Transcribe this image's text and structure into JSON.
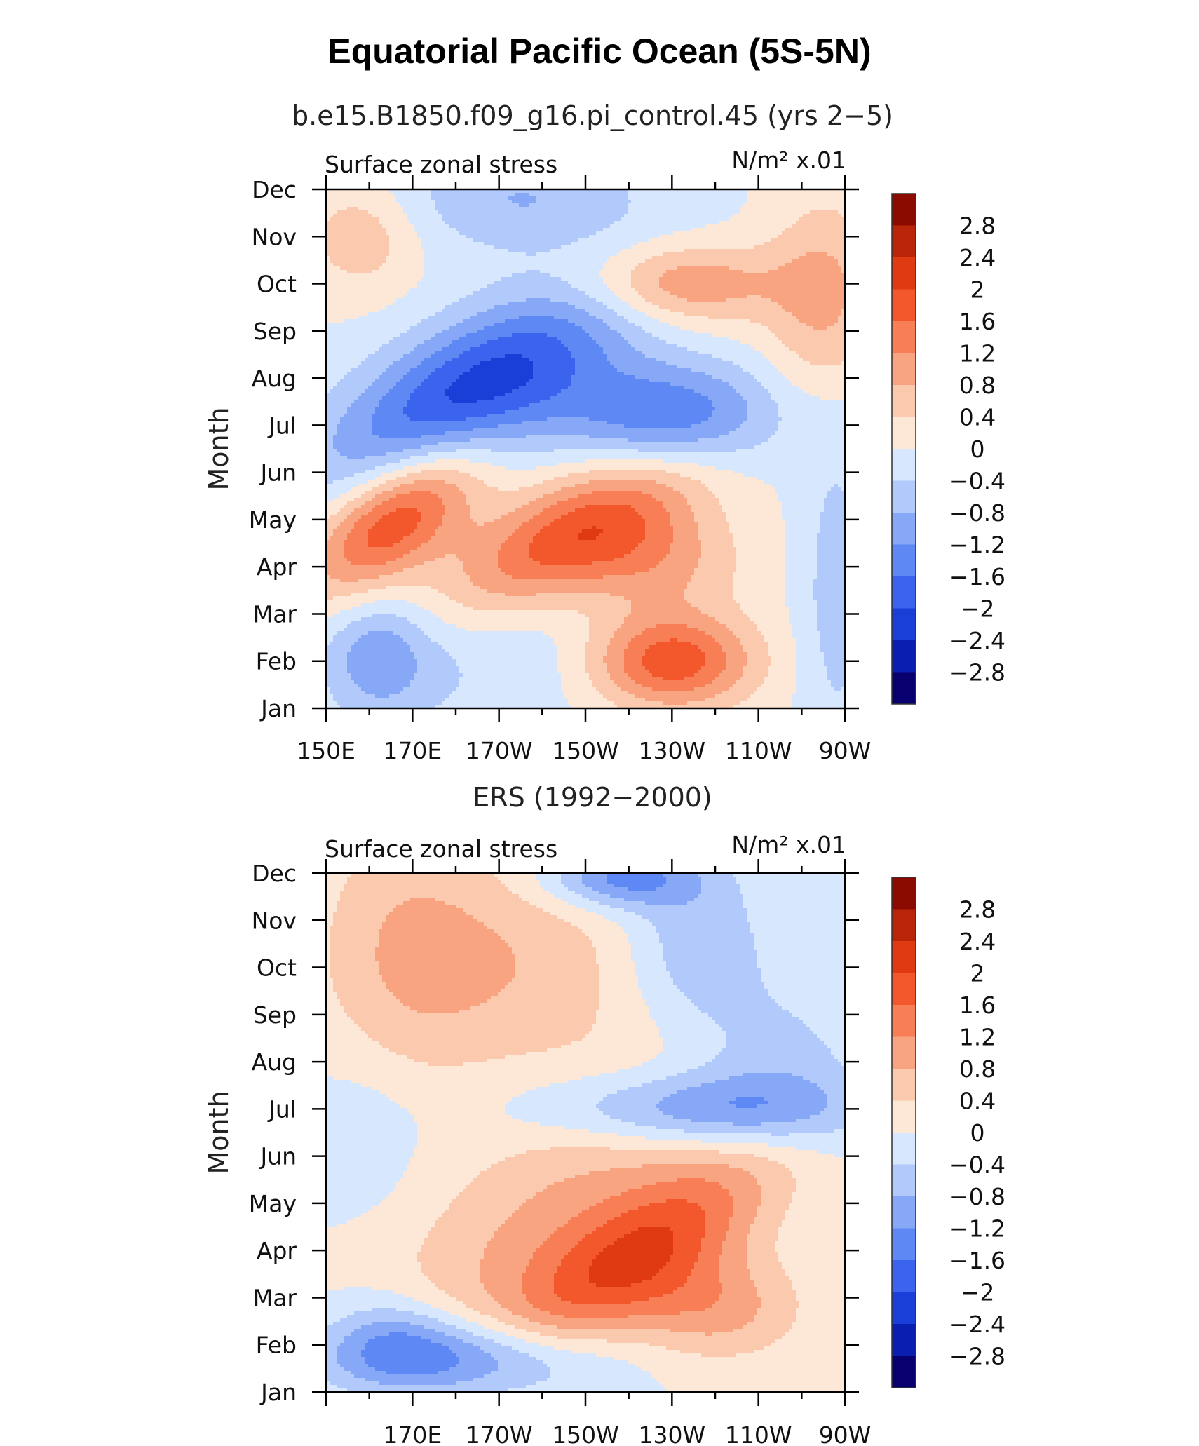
{
  "title": "Equatorial Pacific Ocean (5S-5N)",
  "colors": {
    "axis": "#000000",
    "levels": [
      "#08006e",
      "#0a1fb0",
      "#1a3ed8",
      "#3a63ee",
      "#5e89f4",
      "#86a8f7",
      "#b1c9fb",
      "#d7e7fd",
      "#fde7d7",
      "#fbc9ae",
      "#f9a481",
      "#f77e55",
      "#f2582c",
      "#e03a12",
      "#b82508",
      "#8c0b00"
    ]
  },
  "chart_data": [
    {
      "type": "heatmap",
      "subtitle": "b.e15.B1850.f09_g16.pi_control.45 (yrs 2−5)",
      "left_label": "Surface zonal stress",
      "units_label": "N/m² x.01",
      "ylabel": "Month",
      "xlabel": "",
      "x_tick_labels": [
        "150E",
        "170E",
        "170W",
        "150W",
        "130W",
        "110W",
        "90W"
      ],
      "x_tick_lon": [
        150,
        170,
        190,
        210,
        230,
        250,
        270
      ],
      "xlim": [
        150,
        270
      ],
      "y_tick_labels": [
        "Jan",
        "Feb",
        "Mar",
        "Apr",
        "May",
        "Jun",
        "Jul",
        "Aug",
        "Sep",
        "Oct",
        "Nov",
        "Dec"
      ],
      "ylim": [
        1,
        12
      ],
      "colorbar_labels": [
        "2.8",
        "2.4",
        "2",
        "1.6",
        "1.2",
        "0.8",
        "0.4",
        "0",
        "−0.4",
        "−0.8",
        "−1.2",
        "−1.6",
        "−2",
        "−2.4",
        "−2.8"
      ],
      "levels": [
        -2.8,
        -2.4,
        -2,
        -1.6,
        -1.2,
        -0.8,
        -0.4,
        0,
        0.4,
        0.8,
        1.2,
        1.6,
        2,
        2.4,
        2.8
      ],
      "features": [
        {
          "lon": 166,
          "month": 5.0,
          "amp": 2.1,
          "sx": 14,
          "sy": 0.9,
          "tilt": -0.05
        },
        {
          "lon": 205,
          "month": 4.6,
          "amp": 1.8,
          "sx": 22,
          "sy": 0.9,
          "tilt": -0.04
        },
        {
          "lon": 226,
          "month": 4.1,
          "amp": 0.9,
          "sx": 14,
          "sy": 0.8,
          "tilt": 0
        },
        {
          "lon": 230,
          "month": 2.0,
          "amp": 1.9,
          "sx": 13,
          "sy": 0.7,
          "tilt": 0
        },
        {
          "lon": 185,
          "month": 7.8,
          "amp": -2.2,
          "sx": 24,
          "sy": 1.1,
          "tilt": -0.04
        },
        {
          "lon": 230,
          "month": 7.2,
          "amp": -1.6,
          "sx": 18,
          "sy": 0.8,
          "tilt": 0
        },
        {
          "lon": 162,
          "month": 2.1,
          "amp": -1.0,
          "sx": 9,
          "sy": 0.9,
          "tilt": 0
        },
        {
          "lon": 182,
          "month": 2.6,
          "amp": -0.5,
          "sx": 22,
          "sy": 1.4,
          "tilt": 0
        },
        {
          "lon": 232,
          "month": 10.0,
          "amp": 1.3,
          "sx": 16,
          "sy": 0.6,
          "tilt": 0
        },
        {
          "lon": 265,
          "month": 9.7,
          "amp": 0.9,
          "sx": 9,
          "sy": 1.5,
          "tilt": 0
        },
        {
          "lon": 158,
          "month": 11.0,
          "amp": 0.7,
          "sx": 9,
          "sy": 0.8,
          "tilt": 0
        },
        {
          "lon": 195,
          "month": 11.8,
          "amp": -0.8,
          "sx": 20,
          "sy": 0.8,
          "tilt": 0
        },
        {
          "lon": 268,
          "month": 3.5,
          "amp": -0.6,
          "sx": 6,
          "sy": 2.5,
          "tilt": 0
        }
      ]
    },
    {
      "type": "heatmap",
      "subtitle": "ERS (1992−2000)",
      "left_label": "Surface zonal stress",
      "units_label": "N/m² x.01",
      "ylabel": "Month",
      "xlabel": "",
      "x_tick_labels": [
        "170E",
        "170W",
        "150W",
        "130W",
        "110W",
        "90W"
      ],
      "x_tick_lon": [
        170,
        190,
        210,
        230,
        250,
        270
      ],
      "xlim": [
        150,
        270
      ],
      "y_tick_labels": [
        "Jan",
        "Feb",
        "Mar",
        "Apr",
        "May",
        "Jun",
        "Jul",
        "Aug",
        "Sep",
        "Oct",
        "Nov",
        "Dec"
      ],
      "ylim": [
        1,
        12
      ],
      "colorbar_labels": [
        "2.8",
        "2.4",
        "2",
        "1.6",
        "1.2",
        "0.8",
        "0.4",
        "0",
        "−0.4",
        "−0.8",
        "−1.2",
        "−1.6",
        "−2",
        "−2.4",
        "−2.8"
      ],
      "levels": [
        -2.8,
        -2.4,
        -2,
        -1.6,
        -1.2,
        -0.8,
        -0.4,
        0,
        0.4,
        0.8,
        1.2,
        1.6,
        2,
        2.4,
        2.8
      ],
      "features": [
        {
          "lon": 222,
          "month": 3.9,
          "amp": 1.8,
          "sx": 22,
          "sy": 1.0,
          "tilt": -0.05
        },
        {
          "lon": 200,
          "month": 4.7,
          "amp": 0.8,
          "sx": 28,
          "sy": 1.5,
          "tilt": -0.05
        },
        {
          "lon": 240,
          "month": 2.8,
          "amp": 1.0,
          "sx": 14,
          "sy": 0.8,
          "tilt": 0
        },
        {
          "lon": 180,
          "month": 1.7,
          "amp": -1.6,
          "sx": 22,
          "sy": 0.6,
          "tilt": 0
        },
        {
          "lon": 165,
          "month": 2.2,
          "amp": -0.7,
          "sx": 10,
          "sy": 0.7,
          "tilt": 0
        },
        {
          "lon": 236,
          "month": 7.0,
          "amp": -1.3,
          "sx": 26,
          "sy": 0.55,
          "tilt": 0
        },
        {
          "lon": 255,
          "month": 8.0,
          "amp": -0.6,
          "sx": 14,
          "sy": 1.2,
          "tilt": 0
        },
        {
          "lon": 218,
          "month": 11.9,
          "amp": -1.4,
          "sx": 12,
          "sy": 0.45,
          "tilt": 0
        },
        {
          "lon": 235,
          "month": 10.5,
          "amp": -0.8,
          "sx": 12,
          "sy": 1.3,
          "tilt": 0
        },
        {
          "lon": 195,
          "month": 10.0,
          "amp": 0.7,
          "sx": 24,
          "sy": 1.6,
          "tilt": 0
        },
        {
          "lon": 168,
          "month": 10.5,
          "amp": 0.6,
          "sx": 14,
          "sy": 2.0,
          "tilt": 0
        },
        {
          "lon": 158,
          "month": 6.5,
          "amp": -0.3,
          "sx": 10,
          "sy": 1.2,
          "tilt": 0
        }
      ]
    }
  ]
}
